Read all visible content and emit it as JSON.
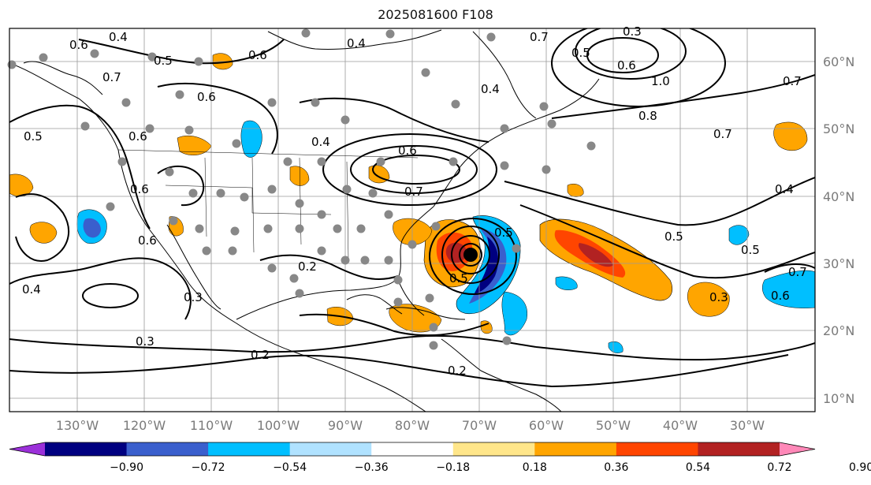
{
  "title": "2025081600 F108",
  "longitude_labels": [
    "130°W",
    "120°W",
    "110°W",
    "100°W",
    "90°W",
    "80°W",
    "70°W",
    "60°W",
    "50°W",
    "40°W",
    "30°W"
  ],
  "latitude_labels": [
    "60°N",
    "50°N",
    "40°N",
    "30°N",
    "20°N",
    "10°N"
  ],
  "colorbar": {
    "colors": [
      "#9b30d9",
      "#000080",
      "#3a5fcd",
      "#00bfff",
      "#b0e2ff",
      "#ffffff",
      "#ffe68a",
      "#ffa500",
      "#ff4500",
      "#b22222",
      "#ff88b8"
    ],
    "tick_labels": [
      "−0.90",
      "−0.72",
      "−0.54",
      "−0.36",
      "−0.18",
      "0.18",
      "0.36",
      "0.54",
      "0.72",
      "0.90"
    ]
  },
  "contour_labels": [
    {
      "text": "0.4"
    },
    {
      "text": "0.6"
    },
    {
      "text": "0.5"
    },
    {
      "text": "0.7"
    },
    {
      "text": "0.6"
    },
    {
      "text": "0.4"
    },
    {
      "text": "0.7"
    },
    {
      "text": "0.5"
    },
    {
      "text": "0.3"
    },
    {
      "text": "0.6"
    },
    {
      "text": "1.0"
    },
    {
      "text": "0.8"
    },
    {
      "text": "0.7"
    },
    {
      "text": "0.4"
    },
    {
      "text": "0.5"
    },
    {
      "text": "0.5"
    },
    {
      "text": "0.7"
    },
    {
      "text": "0.6"
    },
    {
      "text": "0.5"
    },
    {
      "text": "0.6"
    },
    {
      "text": "0.4"
    },
    {
      "text": "0.6"
    },
    {
      "text": "0.7"
    },
    {
      "text": "0.6"
    },
    {
      "text": "0.6"
    },
    {
      "text": "0.2"
    },
    {
      "text": "0.3"
    },
    {
      "text": "0.5"
    },
    {
      "text": "0.5"
    },
    {
      "text": "0.3"
    },
    {
      "text": "0.2"
    },
    {
      "text": "0.3"
    },
    {
      "text": "0.2"
    },
    {
      "text": "0.4"
    },
    {
      "text": "0.6"
    },
    {
      "text": "0.4"
    },
    {
      "text": "0.7"
    }
  ],
  "legend_marker": {
    "color": "#000000"
  },
  "station_color": "#888888"
}
